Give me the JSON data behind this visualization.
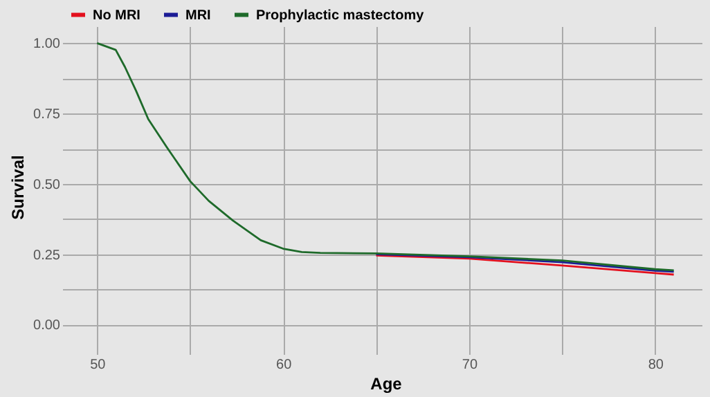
{
  "chart_data": {
    "type": "line",
    "xlabel": "Age",
    "ylabel": "Survival",
    "x": [
      50,
      51,
      51.5,
      52.1,
      52.75,
      53.75,
      55,
      56,
      57.3,
      58.8,
      60,
      61,
      62,
      65,
      70,
      75,
      80,
      81
    ],
    "series": [
      {
        "name": "No MRI",
        "color": "#e3101e",
        "values": [
          null,
          null,
          null,
          null,
          null,
          null,
          null,
          null,
          null,
          null,
          null,
          null,
          null,
          0.246,
          0.235,
          0.21,
          0.183,
          0.178
        ]
      },
      {
        "name": "MRI",
        "color": "#1c1c96",
        "values": [
          null,
          null,
          null,
          null,
          null,
          null,
          null,
          null,
          null,
          null,
          null,
          null,
          null,
          0.25,
          0.24,
          0.222,
          0.192,
          0.188
        ]
      },
      {
        "name": "Prophylactic mastectomy",
        "color": "#1e6a2a",
        "values": [
          1,
          0.976,
          0.915,
          0.83,
          0.73,
          0.63,
          0.51,
          0.44,
          0.37,
          0.3,
          0.27,
          0.258,
          0.255,
          0.253,
          0.243,
          0.228,
          0.197,
          0.193
        ]
      }
    ],
    "xlim": [
      48.5,
      82.5
    ],
    "ylim": [
      -0.08,
      1.06
    ],
    "xticks": [
      50,
      {
        "value": 55,
        "label": null
      },
      60,
      {
        "value": 65,
        "label": null
      },
      70,
      {
        "value": 75,
        "label": null
      },
      80
    ],
    "yticks": [
      {
        "value": 0,
        "label": "0.00"
      },
      {
        "value": 0.125,
        "label": null
      },
      0.25,
      {
        "value": 0.375,
        "label": null
      },
      {
        "value": 0.5,
        "label": "0.50"
      },
      {
        "value": 0.625,
        "label": null
      },
      0.75,
      {
        "value": 0.875,
        "label": null
      },
      {
        "value": 1,
        "label": "1.00"
      }
    ],
    "grid": true,
    "legend": "top"
  }
}
